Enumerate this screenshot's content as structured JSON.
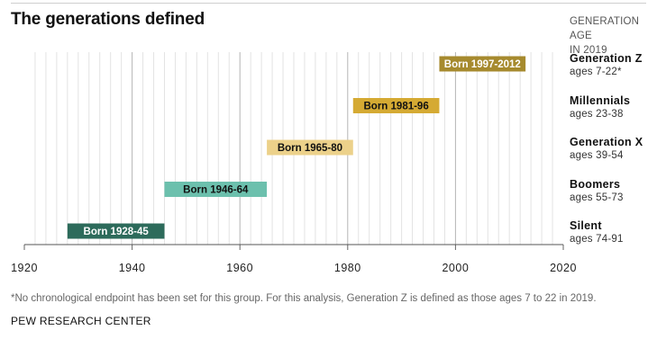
{
  "title": "The generations defined",
  "age_header": [
    "GENERATION AGE",
    "IN 2019"
  ],
  "chart_data": {
    "type": "bar",
    "orientation": "horizontal-range",
    "xlim": [
      1920,
      2020
    ],
    "x_ticks": [
      1920,
      1940,
      1960,
      1980,
      2000,
      2020
    ],
    "grid": "vertical minor every 2 years, major every 20 years",
    "series": [
      {
        "name": "Generation Z",
        "ages": "ages 7-22*",
        "start": 1997,
        "end": 2012,
        "label": "Born 1997-2012",
        "color": "#a68a2e",
        "label_color": "#ffffff"
      },
      {
        "name": "Millennials",
        "ages": "ages 23-38",
        "start": 1981,
        "end": 1996,
        "label": "Born 1981-96",
        "color": "#d5aa33",
        "label_color": "#111111"
      },
      {
        "name": "Generation X",
        "ages": "ages 39-54",
        "start": 1965,
        "end": 1980,
        "label": "Born 1965-80",
        "color": "#ecd18a",
        "label_color": "#111111"
      },
      {
        "name": "Boomers",
        "ages": "ages 55-73",
        "start": 1946,
        "end": 1964,
        "label": "Born 1946-64",
        "color": "#6cc0ad",
        "label_color": "#111111"
      },
      {
        "name": "Silent",
        "ages": "ages 74-91",
        "start": 1928,
        "end": 1945,
        "label": "Born 1928-45",
        "color": "#2d6b5b",
        "label_color": "#ffffff"
      }
    ]
  },
  "note": "*No chronological endpoint has been set for this group. For this analysis, Generation Z is defined as those ages 7 to 22 in 2019.",
  "source": "PEW RESEARCH CENTER"
}
